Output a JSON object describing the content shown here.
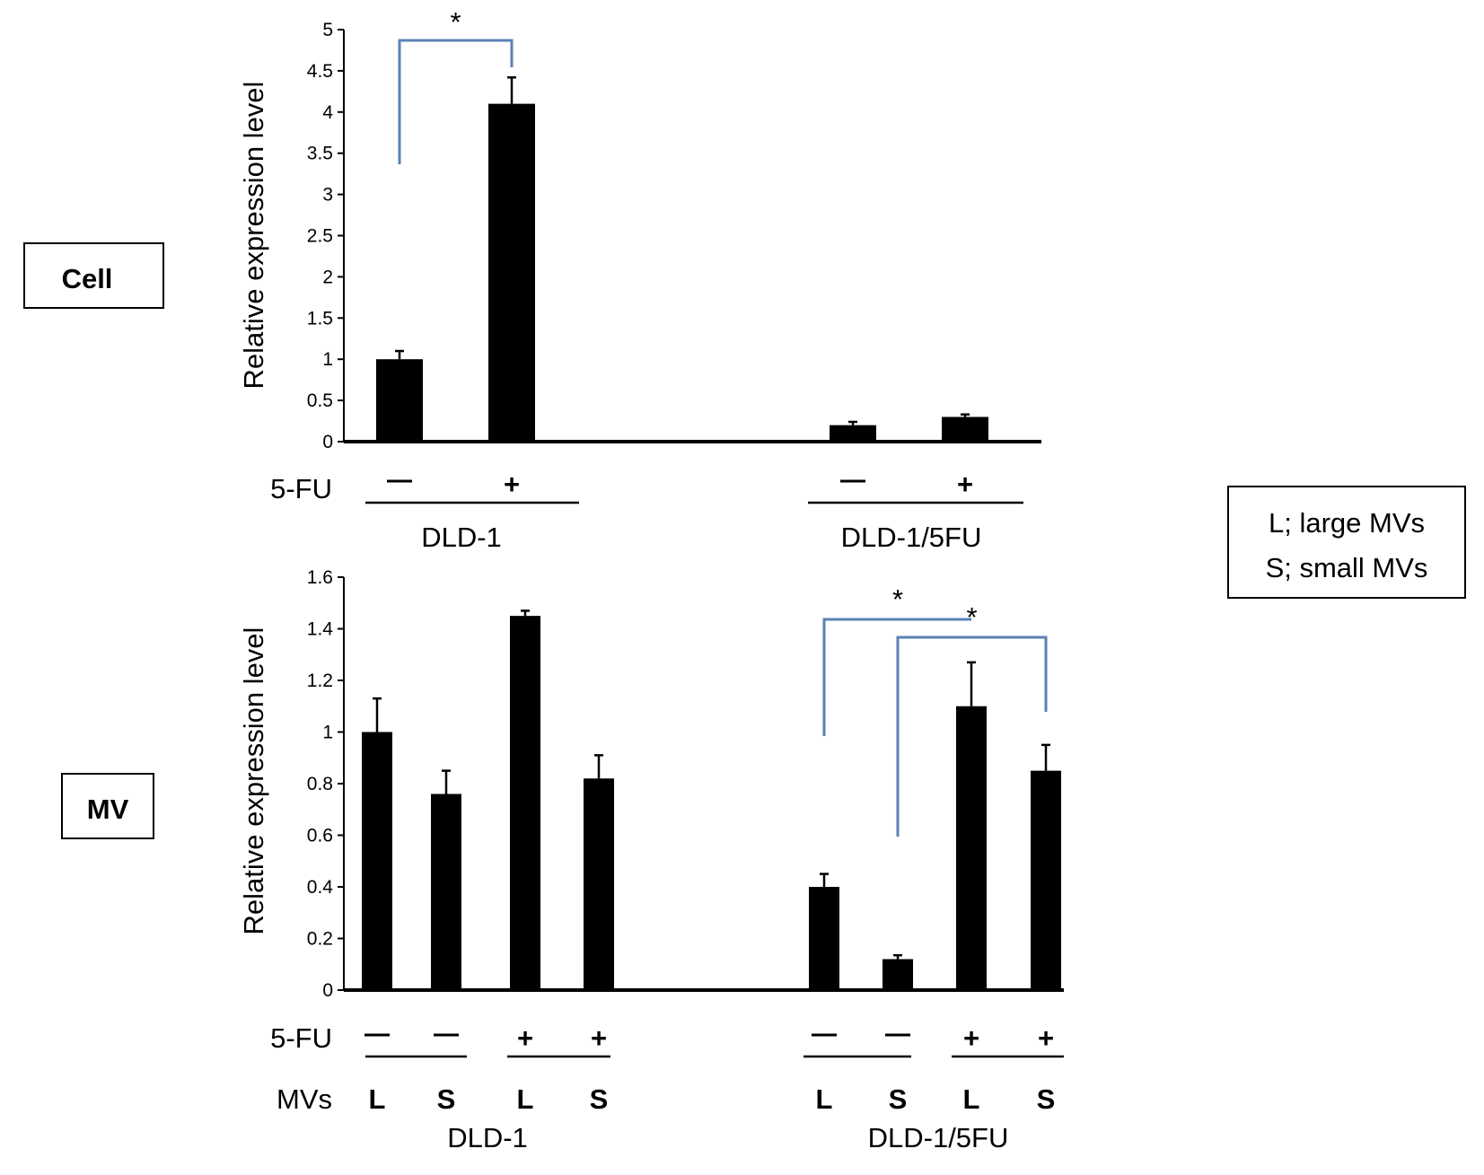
{
  "labels": {
    "cell_box": "Cell",
    "mv_box": "MV",
    "legend_line1": "L; large MVs",
    "legend_line2": "S; small MVs"
  },
  "colors": {
    "bar": "#000000",
    "bracket": "#5b82b5"
  },
  "chart_data": [
    {
      "type": "bar",
      "title": "Cell",
      "ylabel": "Relative expression level",
      "ylim": [
        0,
        5
      ],
      "yticks": [
        "0",
        "0.5",
        "1",
        "1.5",
        "2",
        "2.5",
        "3",
        "3.5",
        "4",
        "4.5",
        "5"
      ],
      "row_labels": {
        "treatment": "5-FU"
      },
      "categories": [
        "DLD-1 5-FU −",
        "DLD-1 5-FU +",
        "DLD-1/5FU 5-FU −",
        "DLD-1/5FU 5-FU +"
      ],
      "bars": [
        {
          "group": "DLD-1",
          "treatment": "—",
          "value": 1.0,
          "error": 0.1
        },
        {
          "group": "DLD-1",
          "treatment": "+",
          "value": 4.1,
          "error": 0.32
        },
        {
          "group": "DLD-1/5FU",
          "treatment": "—",
          "value": 0.2,
          "error": 0.04
        },
        {
          "group": "DLD-1/5FU",
          "treatment": "+",
          "value": 0.3,
          "error": 0.03
        }
      ],
      "groups": [
        "DLD-1",
        "DLD-1/5FU"
      ],
      "significance": [
        {
          "from": 0,
          "to": 1,
          "label": "*"
        }
      ]
    },
    {
      "type": "bar",
      "title": "MV",
      "ylabel": "Relative expression level",
      "ylim": [
        0,
        1.6
      ],
      "yticks": [
        "0",
        "0.2",
        "0.4",
        "0.6",
        "0.8",
        "1",
        "1.2",
        "1.4",
        "1.6"
      ],
      "row_labels": {
        "treatment": "5-FU",
        "mvs": "MVs"
      },
      "bars": [
        {
          "group": "DLD-1",
          "treatment": "—",
          "mv": "L",
          "value": 1.0,
          "error": 0.13
        },
        {
          "group": "DLD-1",
          "treatment": "—",
          "mv": "S",
          "value": 0.76,
          "error": 0.09
        },
        {
          "group": "DLD-1",
          "treatment": "+",
          "mv": "L",
          "value": 1.45,
          "error": 0.02
        },
        {
          "group": "DLD-1",
          "treatment": "+",
          "mv": "S",
          "value": 0.82,
          "error": 0.09
        },
        {
          "group": "DLD-1/5FU",
          "treatment": "—",
          "mv": "L",
          "value": 0.4,
          "error": 0.05
        },
        {
          "group": "DLD-1/5FU",
          "treatment": "—",
          "mv": "S",
          "value": 0.12,
          "error": 0.015
        },
        {
          "group": "DLD-1/5FU",
          "treatment": "+",
          "mv": "L",
          "value": 1.1,
          "error": 0.17
        },
        {
          "group": "DLD-1/5FU",
          "treatment": "+",
          "mv": "S",
          "value": 0.85,
          "error": 0.1
        }
      ],
      "groups": [
        "DLD-1",
        "DLD-1/5FU"
      ],
      "significance": [
        {
          "from": 4,
          "to": 6,
          "label": "*"
        },
        {
          "from": 5,
          "to": 7,
          "label": "*"
        }
      ]
    }
  ]
}
